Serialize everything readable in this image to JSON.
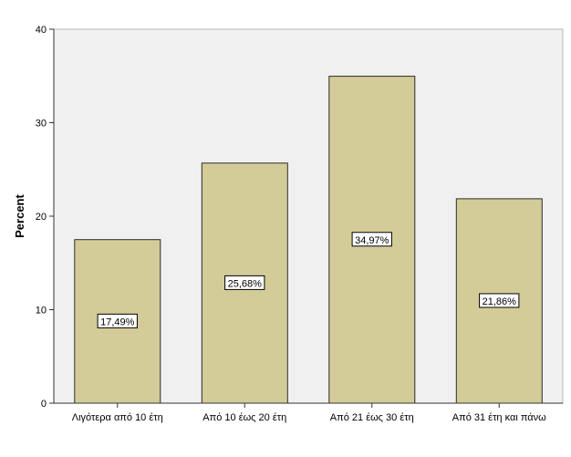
{
  "chart_data": {
    "type": "bar",
    "categories": [
      "Λιγότερα από 10 έτη",
      "Από 10 έως 20 έτη",
      "Από 21 έως 30 έτη",
      "Από 31 έτη και πάνω"
    ],
    "values": [
      17.49,
      25.68,
      34.97,
      21.86
    ],
    "data_labels": [
      "17,49%",
      "25,68%",
      "34,97%",
      "21,86%"
    ],
    "title": "",
    "xlabel": "",
    "ylabel": "Percent",
    "ylim": [
      0,
      40
    ],
    "yticks": [
      0,
      10,
      20,
      30,
      40
    ],
    "ytick_labels": [
      "0",
      "10",
      "20",
      "30",
      "40"
    ],
    "grid": false,
    "legend": "none",
    "colors": {
      "bar_fill": "#d4cc98",
      "bar_stroke": "#2b2b2b",
      "plot_background": "#f0f0f0",
      "plot_border": "#b8b8b8",
      "axis": "#333333",
      "label_box_fill": "#ffffff",
      "label_box_stroke": "#000000"
    }
  }
}
